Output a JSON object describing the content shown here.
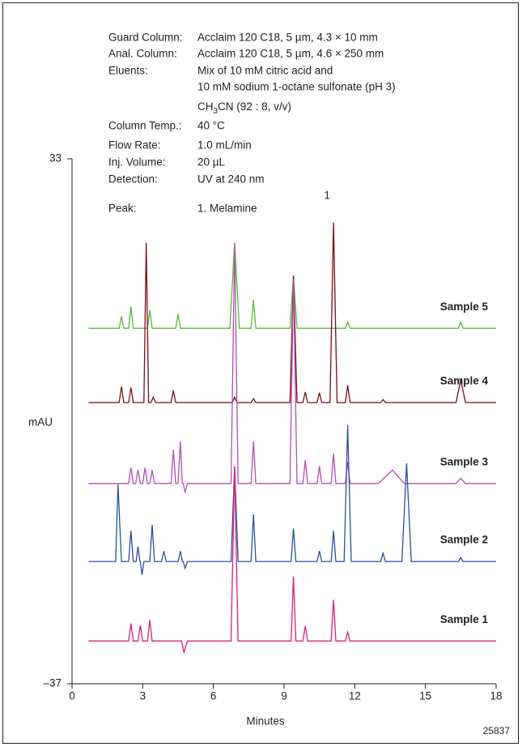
{
  "chart_data": {
    "type": "line",
    "conditions": [
      {
        "label": "Guard Column:",
        "value": "Acclaim 120 C18, 5 µm, 4.3 × 10 mm"
      },
      {
        "label": "Anal. Column:",
        "value": "Acclaim 120 C18, 5 µm, 4.6 × 250 mm"
      },
      {
        "label": "Eluents:",
        "value": "Mix of 10 mM citric acid and"
      },
      {
        "value": "10 mM sodium 1-octane sulfonate (pH 3)"
      },
      {
        "formula": [
          "CH",
          "3",
          "CN (92 : 8, v/v)"
        ]
      },
      {
        "label": "Column Temp.:",
        "value": "40 °C"
      },
      {
        "label": "Flow Rate:",
        "value": "1.0 mL/min"
      },
      {
        "label": "Inj. Volume:",
        "value": "20 µL"
      },
      {
        "label": "Detection:",
        "value": "UV at 240 nm"
      },
      {
        "label": "Peak:",
        "value": "1. Melamine"
      }
    ],
    "peak_labels": [
      {
        "label": "1",
        "x": 11.1
      }
    ],
    "ylabel": "mAU",
    "xlabel": "Minutes",
    "footnote": "25837",
    "xlim": [
      0,
      18
    ],
    "xticks": [
      0,
      3,
      6,
      9,
      12,
      15,
      18
    ],
    "ylim": [
      -37,
      33
    ],
    "yticks": [
      {
        "value": -37,
        "label": "–37"
      },
      33
    ],
    "series": [
      {
        "name": "Sample 5",
        "color": "#5cb83a",
        "x": [
          0.7,
          2.0,
          2.1,
          2.2,
          2.4,
          2.5,
          2.6,
          3.2,
          3.3,
          3.4,
          4.4,
          4.5,
          4.6,
          6.7,
          6.9,
          7.1,
          7.6,
          7.7,
          7.8,
          9.25,
          9.4,
          9.55,
          11.6,
          11.7,
          11.8,
          16.4,
          16.5,
          16.6,
          18
        ],
        "values": [
          10.4,
          10.4,
          12.0,
          10.4,
          10.4,
          13.3,
          10.4,
          10.4,
          12.8,
          10.4,
          10.4,
          12.3,
          10.4,
          10.4,
          21.8,
          10.4,
          10.4,
          14.2,
          10.4,
          10.4,
          17.4,
          10.4,
          10.4,
          11.2,
          10.4,
          10.4,
          11.2,
          10.4,
          10.4
        ]
      },
      {
        "name": "Sample 4",
        "color": "#7a0f14",
        "x": [
          0.7,
          2.0,
          2.1,
          2.2,
          2.4,
          2.5,
          2.6,
          3.05,
          3.15,
          3.25,
          3.35,
          3.45,
          3.55,
          4.2,
          4.3,
          4.4,
          6.8,
          6.9,
          7.0,
          7.6,
          7.7,
          7.8,
          9.25,
          9.4,
          9.55,
          9.8,
          9.9,
          10.0,
          10.4,
          10.5,
          10.6,
          10.95,
          11.1,
          11.25,
          11.6,
          11.7,
          11.8,
          13.1,
          13.2,
          13.3,
          16.3,
          16.5,
          16.7,
          18
        ],
        "values": [
          0.5,
          0.5,
          2.6,
          0.5,
          0.5,
          2.5,
          0.5,
          0.5,
          21.8,
          0.5,
          0.5,
          1.2,
          0.5,
          0.5,
          2.1,
          0.5,
          0.5,
          1.2,
          0.5,
          0.5,
          1.0,
          0.5,
          0.5,
          17.4,
          0.5,
          0.5,
          1.9,
          0.5,
          0.5,
          1.8,
          0.5,
          0.5,
          24.5,
          0.5,
          0.5,
          2.8,
          0.5,
          0.5,
          0.9,
          0.5,
          0.5,
          3.5,
          0.5,
          0.5
        ]
      },
      {
        "name": "Sample 3",
        "color": "#b24fb3",
        "x": [
          0.7,
          2.4,
          2.5,
          2.6,
          2.7,
          2.8,
          2.9,
          3.0,
          3.1,
          3.2,
          3.3,
          3.4,
          3.5,
          4.2,
          4.3,
          4.4,
          4.5,
          4.6,
          4.68,
          4.72,
          4.8,
          4.9,
          6.75,
          6.9,
          7.05,
          7.6,
          7.7,
          7.8,
          9.25,
          9.4,
          9.55,
          9.8,
          9.9,
          10.0,
          10.4,
          10.5,
          10.6,
          11.0,
          11.1,
          11.2,
          11.6,
          11.7,
          11.8,
          13.0,
          13.6,
          14.1,
          16.3,
          16.5,
          16.7,
          18
        ],
        "values": [
          -10.3,
          -10.3,
          -8.2,
          -10.3,
          -10.3,
          -8.5,
          -10.3,
          -10.3,
          -8.2,
          -10.3,
          -10.3,
          -8.5,
          -10.3,
          -10.3,
          -5.8,
          -10.3,
          -10.3,
          -4.7,
          -10.3,
          -10.3,
          -11.5,
          -10.3,
          -10.3,
          21.8,
          -10.3,
          -10.3,
          -4.7,
          -10.3,
          -10.3,
          16.9,
          -10.3,
          -10.3,
          -7.2,
          -10.3,
          -10.3,
          -8.0,
          -10.3,
          -10.3,
          -6.3,
          -10.3,
          -10.3,
          -7.4,
          -10.3,
          -10.3,
          -8.5,
          -10.3,
          -10.3,
          -9.6,
          -10.3,
          -10.3
        ]
      },
      {
        "name": "Sample 2",
        "color": "#2c4fa3",
        "x": [
          0.7,
          1.85,
          1.95,
          2.1,
          2.4,
          2.5,
          2.6,
          2.72,
          2.8,
          2.88,
          2.9,
          2.97,
          3.05,
          3.3,
          3.4,
          3.5,
          3.8,
          3.9,
          4.0,
          4.5,
          4.6,
          4.68,
          4.72,
          4.8,
          4.9,
          6.75,
          6.9,
          7.05,
          7.6,
          7.7,
          7.8,
          9.3,
          9.4,
          9.5,
          10.4,
          10.5,
          10.6,
          11.0,
          11.1,
          11.2,
          11.55,
          11.7,
          11.85,
          13.1,
          13.2,
          13.3,
          14.0,
          14.2,
          14.4,
          16.4,
          16.5,
          16.6,
          18
        ],
        "values": [
          -20.7,
          -20.7,
          -10.4,
          -20.7,
          -20.7,
          -16.6,
          -20.7,
          -20.7,
          -18.7,
          -20.7,
          -20.7,
          -22.5,
          -20.7,
          -20.7,
          -15.8,
          -20.7,
          -20.7,
          -19.3,
          -20.7,
          -20.7,
          -19.3,
          -20.7,
          -20.7,
          -21.6,
          -20.7,
          -20.7,
          -8.0,
          -20.7,
          -20.7,
          -14.4,
          -20.7,
          -20.7,
          -16.3,
          -20.7,
          -20.7,
          -19.3,
          -20.7,
          -20.7,
          -16.6,
          -20.7,
          -20.7,
          -2.5,
          -20.7,
          -20.7,
          -19.6,
          -20.7,
          -20.7,
          -7.6,
          -20.7,
          -20.7,
          -20.2,
          -20.7,
          -20.7
        ]
      },
      {
        "name": "Sample 1",
        "color": "#e0207a",
        "x": [
          0.7,
          2.4,
          2.5,
          2.6,
          2.8,
          2.9,
          3.0,
          3.2,
          3.3,
          3.4,
          4.65,
          4.75,
          4.9,
          6.75,
          6.9,
          7.05,
          9.3,
          9.4,
          9.5,
          9.8,
          9.9,
          10.0,
          11.0,
          11.1,
          11.2,
          11.6,
          11.7,
          11.8,
          18
        ],
        "values": [
          -31.3,
          -31.3,
          -29.0,
          -31.3,
          -31.3,
          -29.2,
          -31.3,
          -31.3,
          -28.5,
          -31.3,
          -31.3,
          -32.8,
          -31.3,
          -31.3,
          -8.0,
          -31.3,
          -31.3,
          -22.7,
          -31.3,
          -31.3,
          -29.3,
          -31.3,
          -31.3,
          -25.8,
          -31.3,
          -31.3,
          -30.1,
          -31.3,
          -31.3
        ]
      }
    ]
  }
}
